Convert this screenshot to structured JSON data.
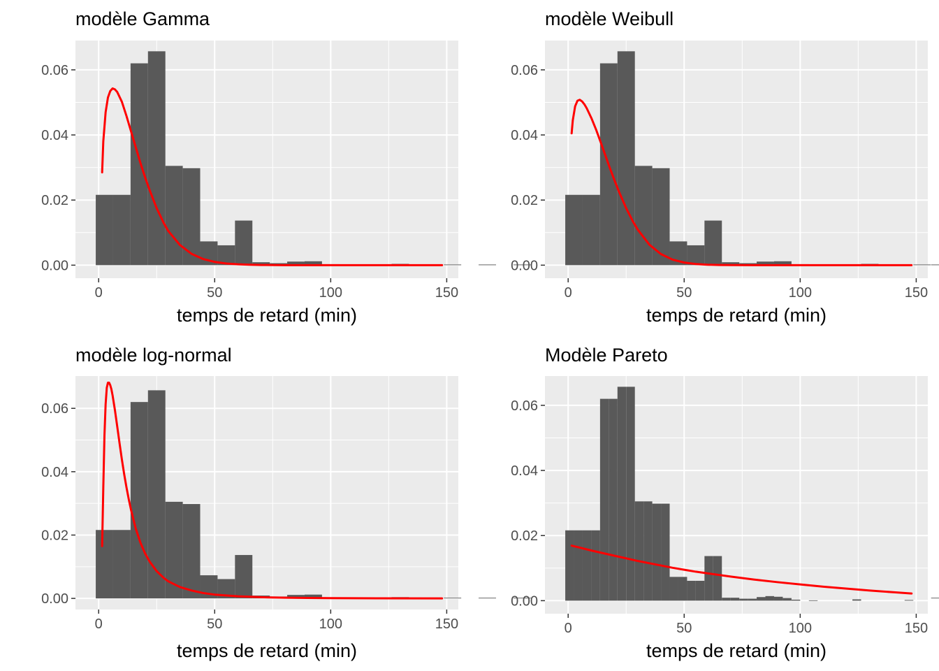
{
  "chart_data": [
    {
      "type": "bar",
      "title": "modèle Gamma",
      "xlabel": "temps de retard (min)",
      "ylabel": "",
      "xlim": [
        -10,
        155
      ],
      "ylim": [
        -0.004,
        0.069
      ],
      "x_ticks": [
        0,
        50,
        100,
        150
      ],
      "x_tick_labels": [
        "0",
        "50",
        "100",
        "150"
      ],
      "y_ticks": [
        0,
        0.02,
        0.04,
        0.06
      ],
      "y_tick_labels": [
        "0.00",
        "0.02",
        "0.04",
        "0.06"
      ],
      "grid": true,
      "histogram": {
        "bin_width": 7.5,
        "bin_start": -1.25,
        "density": [
          0.0216,
          0.0216,
          0.062,
          0.0657,
          0.0305,
          0.0298,
          0.0073,
          0.0061,
          0.0137,
          0.0009,
          0.0006,
          0.0011,
          0.0012,
          0.0003,
          0.0001,
          0,
          0,
          0.0004,
          0,
          0,
          0.0002,
          0,
          0.0002,
          0,
          0.0002,
          0,
          0,
          0,
          0,
          0,
          0,
          0,
          0,
          0,
          0,
          0,
          0,
          0,
          0,
          0,
          0,
          0,
          0,
          0,
          0,
          0,
          0,
          0,
          0.0002,
          0,
          0,
          0,
          0,
          0,
          0,
          0,
          0,
          0,
          0,
          0,
          0,
          0,
          0,
          0,
          0,
          0,
          0,
          0,
          0,
          0,
          0.0002
        ]
      },
      "series": [
        {
          "color": "#ff0000",
          "x": [
            1.5,
            2,
            3,
            4,
            5,
            6,
            7,
            8,
            10,
            12,
            14,
            16,
            18,
            20,
            22,
            25,
            28,
            30,
            35,
            40,
            45,
            50,
            55,
            60,
            65,
            70,
            80,
            90,
            100,
            110,
            120,
            130,
            140,
            148
          ],
          "y": [
            0.0285,
            0.038,
            0.047,
            0.0515,
            0.0535,
            0.0543,
            0.054,
            0.0532,
            0.0502,
            0.0458,
            0.041,
            0.0362,
            0.0314,
            0.027,
            0.023,
            0.0175,
            0.013,
            0.0105,
            0.0062,
            0.0035,
            0.0019,
            0.001,
            0.0005,
            0.00026,
            0.00013,
            6e-05,
            1e-05,
            0,
            0,
            0,
            0,
            0,
            0,
            0
          ]
        }
      ]
    },
    {
      "type": "bar",
      "title": "modèle Weibull",
      "xlabel": "temps de retard (min)",
      "ylabel": "",
      "xlim": [
        -10,
        155
      ],
      "ylim": [
        -0.004,
        0.069
      ],
      "x_ticks": [
        0,
        50,
        100,
        150
      ],
      "x_tick_labels": [
        "0",
        "50",
        "100",
        "150"
      ],
      "y_ticks": [
        0,
        0.02,
        0.04,
        0.06
      ],
      "y_tick_labels": [
        "0.00",
        "0.02",
        "0.04",
        "0.06"
      ],
      "grid": true,
      "histogram": {
        "bin_width": 7.5,
        "bin_start": -1.25,
        "density": [
          0.0216,
          0.0216,
          0.062,
          0.0657,
          0.0305,
          0.0298,
          0.0073,
          0.0061,
          0.0137,
          0.0009,
          0.0006,
          0.0011,
          0.0012,
          0.0003,
          0.0001,
          0,
          0,
          0.0004,
          0,
          0,
          0.0002,
          0,
          0.0002,
          0,
          0.0002,
          0,
          0,
          0,
          0,
          0,
          0,
          0,
          0,
          0,
          0,
          0,
          0,
          0,
          0,
          0,
          0,
          0,
          0,
          0,
          0,
          0,
          0,
          0,
          0.0002,
          0,
          0,
          0,
          0,
          0,
          0,
          0,
          0,
          0,
          0,
          0,
          0,
          0,
          0,
          0,
          0,
          0,
          0,
          0,
          0,
          0,
          0.0002
        ]
      },
      "series": [
        {
          "color": "#ff0000",
          "x": [
            1.5,
            2,
            3,
            4,
            5,
            6,
            7,
            8,
            10,
            12,
            14,
            16,
            18,
            20,
            22,
            25,
            28,
            30,
            35,
            40,
            45,
            50,
            55,
            60,
            65,
            70,
            80,
            90,
            100,
            110,
            120,
            130,
            140,
            148
          ],
          "y": [
            0.0405,
            0.0445,
            0.0488,
            0.0505,
            0.0508,
            0.0503,
            0.0494,
            0.0482,
            0.0452,
            0.0417,
            0.0378,
            0.0338,
            0.0298,
            0.026,
            0.0224,
            0.0175,
            0.0133,
            0.0109,
            0.0063,
            0.0034,
            0.0017,
            0.0008,
            0.00035,
            0.00014,
            5e-05,
            2e-05,
            0,
            0,
            0,
            0,
            0,
            0,
            0,
            0
          ]
        }
      ]
    },
    {
      "type": "bar",
      "title": "modèle log-normal",
      "xlabel": "temps de retard (min)",
      "ylabel": "",
      "xlim": [
        -10,
        155
      ],
      "ylim": [
        -0.0035,
        0.0702
      ],
      "x_ticks": [
        0,
        50,
        100,
        150
      ],
      "x_tick_labels": [
        "0",
        "50",
        "100",
        "150"
      ],
      "y_ticks": [
        0,
        0.02,
        0.04,
        0.06
      ],
      "y_tick_labels": [
        "0.00",
        "0.02",
        "0.04",
        "0.06"
      ],
      "grid": true,
      "histogram": {
        "bin_width": 7.5,
        "bin_start": -1.25,
        "density": [
          0.0216,
          0.0216,
          0.062,
          0.0657,
          0.0305,
          0.0298,
          0.0073,
          0.0061,
          0.0137,
          0.0009,
          0.0006,
          0.0011,
          0.0012,
          0.0003,
          0.0001,
          0,
          0,
          0.0004,
          0,
          0,
          0.0002,
          0,
          0.0002,
          0,
          0.0002,
          0,
          0,
          0,
          0,
          0,
          0,
          0,
          0,
          0,
          0,
          0,
          0,
          0,
          0,
          0,
          0,
          0,
          0,
          0,
          0,
          0,
          0,
          0,
          0.0002,
          0,
          0,
          0,
          0,
          0,
          0,
          0,
          0,
          0,
          0,
          0,
          0,
          0,
          0,
          0,
          0,
          0,
          0,
          0,
          0,
          0,
          0.0002
        ]
      },
      "series": [
        {
          "color": "#ff0000",
          "x": [
            1.5,
            2,
            2.5,
            3,
            3.5,
            4,
            4.5,
            5,
            5.5,
            6,
            7,
            8,
            9,
            10,
            11,
            12,
            13,
            14,
            16,
            18,
            20,
            22,
            25,
            28,
            30,
            35,
            40,
            45,
            50,
            60,
            70,
            80,
            90,
            100,
            120,
            148
          ],
          "y": [
            0.0165,
            0.035,
            0.0515,
            0.0613,
            0.0665,
            0.0681,
            0.0681,
            0.0673,
            0.066,
            0.0641,
            0.0595,
            0.0543,
            0.049,
            0.0439,
            0.0392,
            0.035,
            0.0312,
            0.0278,
            0.022,
            0.0176,
            0.0142,
            0.0116,
            0.0086,
            0.0065,
            0.0054,
            0.0036,
            0.0025,
            0.0017,
            0.0012,
            0.00066,
            0.00038,
            0.00023,
            0.00014,
            9e-05,
            4e-05,
            1e-05
          ]
        }
      ]
    },
    {
      "type": "bar",
      "title": "Modèle Pareto",
      "xlabel": "temps de retard (min)",
      "ylabel": "",
      "xlim": [
        -10,
        155
      ],
      "ylim": [
        -0.004,
        0.069
      ],
      "x_ticks": [
        0,
        50,
        100,
        150
      ],
      "x_tick_labels": [
        "0",
        "50",
        "100",
        "150"
      ],
      "y_ticks": [
        0,
        0.02,
        0.04,
        0.06
      ],
      "y_tick_labels": [
        "0.00",
        "0.02",
        "0.04",
        "0.06"
      ],
      "grid": true,
      "histogram": {
        "bin_width": 3.75,
        "bin_start": -1.25,
        "density": [
          0.0216,
          0.0216,
          0.0216,
          0.0216,
          0.062,
          0.062,
          0.0657,
          0.0657,
          0.0305,
          0.0305,
          0.0298,
          0.0298,
          0.0073,
          0.0073,
          0.0061,
          0.0061,
          0.0137,
          0.0137,
          0.0009,
          0.0009,
          0.0006,
          0.0006,
          0.0011,
          0.0014,
          0.0012,
          0.0008,
          0.0003,
          0,
          0.0001,
          0,
          0,
          0,
          0,
          0.0004,
          0,
          0,
          0,
          0,
          0,
          0.0002,
          0,
          0,
          0,
          0.0002,
          0,
          0,
          0,
          0.0002,
          0,
          0,
          0,
          0,
          0,
          0,
          0,
          0,
          0,
          0,
          0,
          0,
          0,
          0,
          0,
          0,
          0,
          0,
          0,
          0,
          0,
          0,
          0,
          0,
          0,
          0,
          0,
          0,
          0,
          0,
          0,
          0,
          0,
          0,
          0,
          0,
          0,
          0,
          0,
          0,
          0,
          0,
          0,
          0,
          0,
          0,
          0,
          0,
          0,
          0,
          0.0002,
          0,
          0,
          0,
          0,
          0,
          0,
          0,
          0,
          0,
          0,
          0,
          0,
          0,
          0,
          0,
          0,
          0,
          0,
          0,
          0,
          0,
          0,
          0,
          0,
          0,
          0,
          0,
          0,
          0,
          0,
          0,
          0,
          0,
          0,
          0,
          0,
          0,
          0,
          0,
          0,
          0.0002
        ]
      },
      "series": [
        {
          "color": "#ff0000",
          "x": [
            1.5,
            5,
            10,
            15,
            20,
            25,
            30,
            35,
            40,
            45,
            50,
            55,
            60,
            70,
            80,
            90,
            100,
            110,
            120,
            130,
            140,
            148
          ],
          "y": [
            0.0169,
            0.0163,
            0.0154,
            0.0146,
            0.0138,
            0.013,
            0.0122,
            0.0115,
            0.0108,
            0.0101,
            0.0095,
            0.0089,
            0.0084,
            0.0074,
            0.0065,
            0.0057,
            0.005,
            0.0043,
            0.0037,
            0.0031,
            0.0026,
            0.0022
          ]
        }
      ]
    }
  ]
}
